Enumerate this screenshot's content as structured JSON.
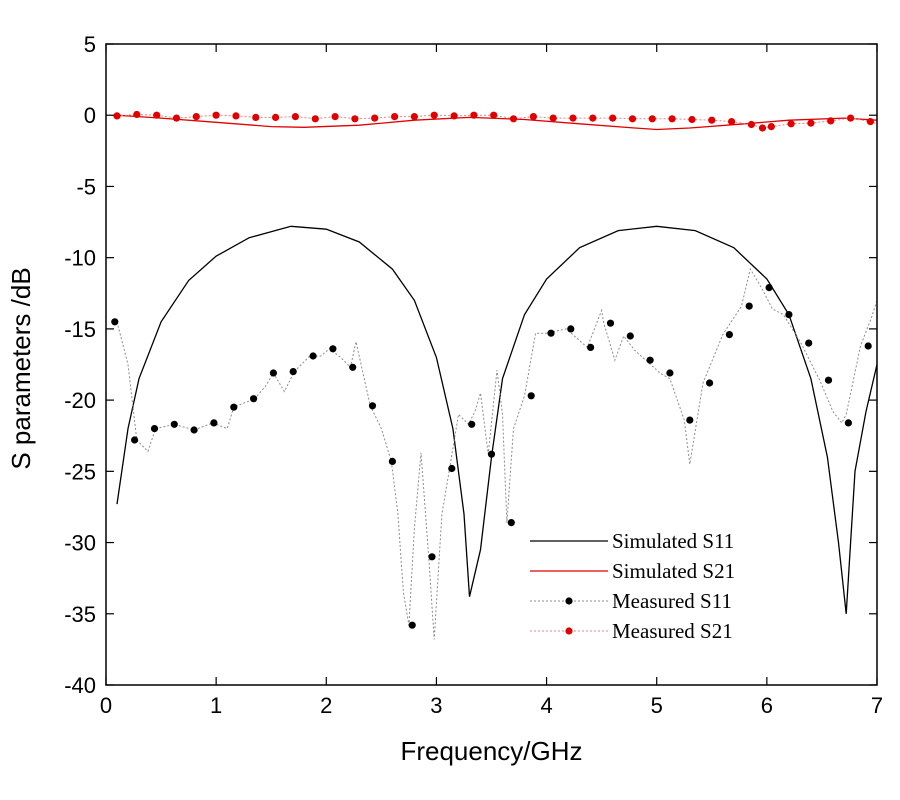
{
  "chart_data": {
    "type": "line",
    "title": "",
    "xlabel": "Frequency/GHz",
    "ylabel": "S parameters /dB",
    "xlim": [
      0,
      7
    ],
    "ylim": [
      -40,
      5
    ],
    "xticks": [
      0,
      1,
      2,
      3,
      4,
      5,
      6,
      7
    ],
    "yticks": [
      5,
      0,
      -5,
      -10,
      -15,
      -20,
      -25,
      -30,
      -35,
      -40
    ],
    "legend_position": "bottom-right",
    "series": [
      {
        "name": "Simulated S11",
        "style": "solid-line",
        "color": "#000000",
        "x": [
          0.1,
          0.2,
          0.3,
          0.5,
          0.75,
          1.0,
          1.3,
          1.68,
          2.0,
          2.3,
          2.6,
          2.8,
          3.0,
          3.15,
          3.25,
          3.3,
          3.4,
          3.5,
          3.6,
          3.8,
          4.0,
          4.3,
          4.65,
          5.0,
          5.35,
          5.7,
          6.0,
          6.2,
          6.4,
          6.55,
          6.65,
          6.72,
          6.8,
          6.9,
          7.0
        ],
        "y": [
          -27.3,
          -22.0,
          -18.5,
          -14.5,
          -11.6,
          -9.9,
          -8.6,
          -7.8,
          -8.0,
          -8.9,
          -10.8,
          -13.0,
          -17.0,
          -22.0,
          -28.0,
          -33.8,
          -30.5,
          -24.0,
          -18.5,
          -14.0,
          -11.5,
          -9.3,
          -8.1,
          -7.8,
          -8.1,
          -9.3,
          -11.5,
          -14.0,
          -18.5,
          -24.0,
          -30.0,
          -35.0,
          -25.0,
          -20.8,
          -17.5
        ]
      },
      {
        "name": "Simulated S21",
        "style": "solid-line",
        "color": "#e00000",
        "x": [
          0.1,
          0.5,
          1.0,
          1.5,
          1.8,
          2.3,
          2.8,
          3.3,
          3.8,
          4.3,
          4.8,
          5.0,
          5.3,
          5.8,
          6.2,
          6.7,
          7.0
        ],
        "y": [
          0.0,
          -0.2,
          -0.5,
          -0.8,
          -0.85,
          -0.7,
          -0.35,
          -0.15,
          -0.3,
          -0.6,
          -0.9,
          -1.0,
          -0.9,
          -0.6,
          -0.35,
          -0.2,
          -0.35
        ]
      },
      {
        "name": "Measured S11",
        "style": "dotted-line-with-markers",
        "color": "#000000",
        "line_color": "#8c8c8c",
        "x": [
          0.1,
          0.2,
          0.28,
          0.38,
          0.45,
          0.62,
          0.8,
          0.97,
          1.1,
          1.16,
          1.35,
          1.45,
          1.52,
          1.62,
          1.71,
          1.85,
          1.95,
          2.03,
          2.13,
          2.22,
          2.27,
          2.4,
          2.5,
          2.59,
          2.65,
          2.7,
          2.75,
          2.8,
          2.86,
          2.93,
          2.98,
          3.05,
          3.12,
          3.2,
          3.29,
          3.35,
          3.4,
          3.47,
          3.55,
          3.6,
          3.64,
          3.7,
          3.8,
          3.9,
          4.0,
          4.18,
          4.37,
          4.5,
          4.52,
          4.62,
          4.7,
          4.8,
          4.9,
          5.03,
          5.12,
          5.25,
          5.3,
          5.42,
          5.6,
          5.77,
          5.85,
          5.95,
          6.05,
          6.15,
          6.31,
          6.48,
          6.6,
          6.68,
          6.72,
          6.85,
          6.95,
          7.0
        ],
        "y": [
          -14.5,
          -17.5,
          -22.8,
          -23.6,
          -22.0,
          -21.7,
          -22.1,
          -21.6,
          -22.0,
          -20.5,
          -19.9,
          -19.0,
          -18.1,
          -19.4,
          -18.0,
          -16.9,
          -16.9,
          -16.4,
          -17.0,
          -17.7,
          -15.9,
          -20.4,
          -22.0,
          -24.3,
          -28.0,
          -33.5,
          -35.8,
          -29.0,
          -23.7,
          -31.0,
          -36.8,
          -28.0,
          -24.8,
          -21.0,
          -21.7,
          -20.8,
          -19.5,
          -23.8,
          -17.9,
          -21.0,
          -28.6,
          -22.0,
          -19.7,
          -15.3,
          -15.3,
          -15.0,
          -16.3,
          -13.7,
          -14.6,
          -17.2,
          -15.5,
          -16.5,
          -17.2,
          -18.1,
          -18.5,
          -21.4,
          -24.5,
          -18.8,
          -15.4,
          -13.4,
          -10.8,
          -12.1,
          -13.6,
          -14.0,
          -16.0,
          -18.6,
          -20.8,
          -21.6,
          -21.0,
          -16.2,
          -14.2,
          -13.0
        ],
        "marker_x": [
          0.08,
          0.26,
          0.44,
          0.62,
          0.8,
          0.98,
          1.16,
          1.34,
          1.52,
          1.7,
          1.88,
          2.06,
          2.24,
          2.42,
          2.6,
          2.78,
          2.96,
          3.14,
          3.32,
          3.5,
          3.68,
          3.86,
          4.04,
          4.22,
          4.4,
          4.58,
          4.76,
          4.94,
          5.12,
          5.3,
          5.48,
          5.66,
          5.84,
          6.02,
          6.2,
          6.38,
          6.56,
          6.74,
          6.92
        ],
        "marker_y": [
          -14.5,
          -22.8,
          -22.0,
          -21.7,
          -22.1,
          -21.6,
          -20.5,
          -19.9,
          -18.1,
          -18.0,
          -16.9,
          -16.4,
          -17.7,
          -20.4,
          -24.3,
          -35.8,
          -31.0,
          -24.8,
          -21.7,
          -23.8,
          -28.6,
          -19.7,
          -15.3,
          -15.0,
          -16.3,
          -14.6,
          -15.5,
          -17.2,
          -18.1,
          -21.4,
          -18.8,
          -15.4,
          -13.4,
          -12.1,
          -14.0,
          -16.0,
          -18.6,
          -21.6,
          -16.2
        ]
      },
      {
        "name": "Measured S21",
        "style": "dotted-line-with-markers",
        "color": "#e00000",
        "line_color": "#e88080",
        "x": [
          0.1,
          0.28,
          0.46,
          0.64,
          0.82,
          1.0,
          1.18,
          1.36,
          1.54,
          1.72,
          1.9,
          2.08,
          2.26,
          2.44,
          2.62,
          2.8,
          2.98,
          3.16,
          3.34,
          3.52,
          3.7,
          3.88,
          4.06,
          4.24,
          4.42,
          4.6,
          4.78,
          4.96,
          5.14,
          5.32,
          5.5,
          5.68,
          5.86,
          5.96,
          6.04,
          6.22,
          6.4,
          6.58,
          6.76,
          6.94,
          7.0
        ],
        "y": [
          -0.05,
          0.05,
          0.0,
          -0.2,
          -0.1,
          0.0,
          -0.05,
          -0.15,
          -0.15,
          -0.1,
          -0.25,
          -0.1,
          -0.25,
          -0.2,
          -0.1,
          -0.1,
          0.0,
          -0.05,
          0.0,
          0.0,
          -0.25,
          -0.1,
          -0.2,
          -0.2,
          -0.2,
          -0.2,
          -0.25,
          -0.25,
          -0.25,
          -0.3,
          -0.35,
          -0.45,
          -0.65,
          -0.9,
          -0.8,
          -0.6,
          -0.55,
          -0.4,
          -0.2,
          -0.45,
          -0.6
        ],
        "marker_x": [
          0.1,
          0.28,
          0.46,
          0.64,
          0.82,
          1.0,
          1.18,
          1.36,
          1.54,
          1.72,
          1.9,
          2.08,
          2.26,
          2.44,
          2.62,
          2.8,
          2.98,
          3.16,
          3.34,
          3.52,
          3.7,
          3.88,
          4.06,
          4.24,
          4.42,
          4.6,
          4.78,
          4.96,
          5.14,
          5.32,
          5.5,
          5.68,
          5.86,
          5.96,
          6.04,
          6.22,
          6.4,
          6.58,
          6.76,
          6.94
        ],
        "marker_y": [
          -0.05,
          0.05,
          0.0,
          -0.2,
          -0.1,
          0.0,
          -0.05,
          -0.15,
          -0.15,
          -0.1,
          -0.25,
          -0.1,
          -0.25,
          -0.2,
          -0.1,
          -0.1,
          0.0,
          -0.05,
          0.0,
          0.0,
          -0.25,
          -0.1,
          -0.2,
          -0.2,
          -0.2,
          -0.2,
          -0.25,
          -0.25,
          -0.25,
          -0.3,
          -0.35,
          -0.45,
          -0.65,
          -0.9,
          -0.8,
          -0.6,
          -0.55,
          -0.4,
          -0.2,
          -0.45
        ]
      }
    ]
  }
}
